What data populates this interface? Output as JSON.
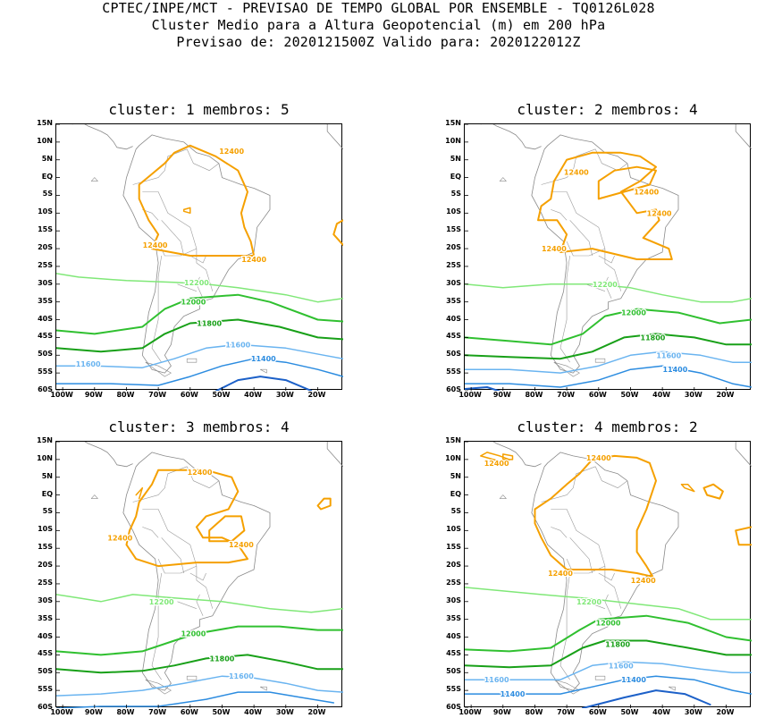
{
  "header": {
    "line1": "CPTEC/INPE/MCT - PREVISAO DE TEMPO GLOBAL POR ENSEMBLE - TQ0126L028",
    "line2": "Cluster Medio para a Altura Geopotencial (m) em 200 hPa",
    "line3": "Previsao de: 2020121500Z   Valido para: 2020122012Z"
  },
  "axes": {
    "lat_labels": [
      "15N",
      "10N",
      "5N",
      "EQ",
      "5S",
      "10S",
      "15S",
      "20S",
      "25S",
      "30S",
      "35S",
      "40S",
      "45S",
      "50S",
      "55S",
      "60S"
    ],
    "lon_labels": [
      "100W",
      "90W",
      "80W",
      "70W",
      "60W",
      "50W",
      "40W",
      "30W",
      "20W"
    ]
  },
  "colors": {
    "c12400": "#f5a000",
    "c12200": "#80e878",
    "c12000": "#30c030",
    "c11800": "#18a018",
    "c11600": "#6ab4f0",
    "c11400": "#2c8ce0",
    "c11200": "#1c60c8",
    "coast": "#8a8a8a"
  },
  "panels": [
    {
      "title": "cluster: 1   membros: 5",
      "labels": [
        {
          "text": "12400",
          "lon": -47,
          "lat": 7.5,
          "color": "c12400"
        },
        {
          "text": "12400",
          "lon": -71,
          "lat": -19,
          "color": "c12400"
        },
        {
          "text": "12400",
          "lon": -40,
          "lat": -23,
          "color": "c12400"
        },
        {
          "text": "12200",
          "lon": -58,
          "lat": -29.5,
          "color": "c12200"
        },
        {
          "text": "12000",
          "lon": -59,
          "lat": -35,
          "color": "c12000"
        },
        {
          "text": "11800",
          "lon": -54,
          "lat": -41,
          "color": "c11800"
        },
        {
          "text": "11600",
          "lon": -45,
          "lat": -47,
          "color": "c11600"
        },
        {
          "text": "11600",
          "lon": -92,
          "lat": -52.5,
          "color": "c11600"
        },
        {
          "text": "11400",
          "lon": -37,
          "lat": -51,
          "color": "c11400"
        }
      ]
    },
    {
      "title": "cluster: 2   membros: 4",
      "labels": [
        {
          "text": "12400",
          "lon": -67,
          "lat": 1.5,
          "color": "c12400"
        },
        {
          "text": "12400",
          "lon": -45,
          "lat": -4,
          "color": "c12400"
        },
        {
          "text": "12400",
          "lon": -41,
          "lat": -10,
          "color": "c12400"
        },
        {
          "text": "12400",
          "lon": -74,
          "lat": -20,
          "color": "c12400"
        },
        {
          "text": "12200",
          "lon": -58,
          "lat": -30,
          "color": "c12200"
        },
        {
          "text": "12000",
          "lon": -49,
          "lat": -38,
          "color": "c12000"
        },
        {
          "text": "11800",
          "lon": -43,
          "lat": -45,
          "color": "c11800"
        },
        {
          "text": "11600",
          "lon": -38,
          "lat": -50,
          "color": "c11600"
        },
        {
          "text": "11400",
          "lon": -36,
          "lat": -54,
          "color": "c11400"
        }
      ]
    },
    {
      "title": "cluster: 3   membros: 4",
      "labels": [
        {
          "text": "12400",
          "lon": -57,
          "lat": 6.5,
          "color": "c12400"
        },
        {
          "text": "12400",
          "lon": -82,
          "lat": -12,
          "color": "c12400"
        },
        {
          "text": "12400",
          "lon": -44,
          "lat": -14,
          "color": "c12400"
        },
        {
          "text": "12200",
          "lon": -69,
          "lat": -30,
          "color": "c12200"
        },
        {
          "text": "12000",
          "lon": -59,
          "lat": -39,
          "color": "c12000"
        },
        {
          "text": "11800",
          "lon": -50,
          "lat": -46,
          "color": "c11800"
        },
        {
          "text": "11600",
          "lon": -44,
          "lat": -51,
          "color": "c11600"
        }
      ]
    },
    {
      "title": "cluster: 4   membros: 2",
      "labels": [
        {
          "text": "12400",
          "lon": -92,
          "lat": 9,
          "color": "c12400"
        },
        {
          "text": "12400",
          "lon": -60,
          "lat": 10.5,
          "color": "c12400"
        },
        {
          "text": "12400",
          "lon": -72,
          "lat": -22,
          "color": "c12400"
        },
        {
          "text": "12400",
          "lon": -46,
          "lat": -24,
          "color": "c12400"
        },
        {
          "text": "12200",
          "lon": -63,
          "lat": -30,
          "color": "c12200"
        },
        {
          "text": "12000",
          "lon": -57,
          "lat": -36,
          "color": "c12000"
        },
        {
          "text": "11800",
          "lon": -54,
          "lat": -42,
          "color": "c11800"
        },
        {
          "text": "11600",
          "lon": -53,
          "lat": -48,
          "color": "c11600"
        },
        {
          "text": "11600",
          "lon": -92,
          "lat": -52,
          "color": "c11600"
        },
        {
          "text": "11400",
          "lon": -49,
          "lat": -52,
          "color": "c11400"
        },
        {
          "text": "11400",
          "lon": -87,
          "lat": -56,
          "color": "c11400"
        }
      ]
    }
  ]
}
